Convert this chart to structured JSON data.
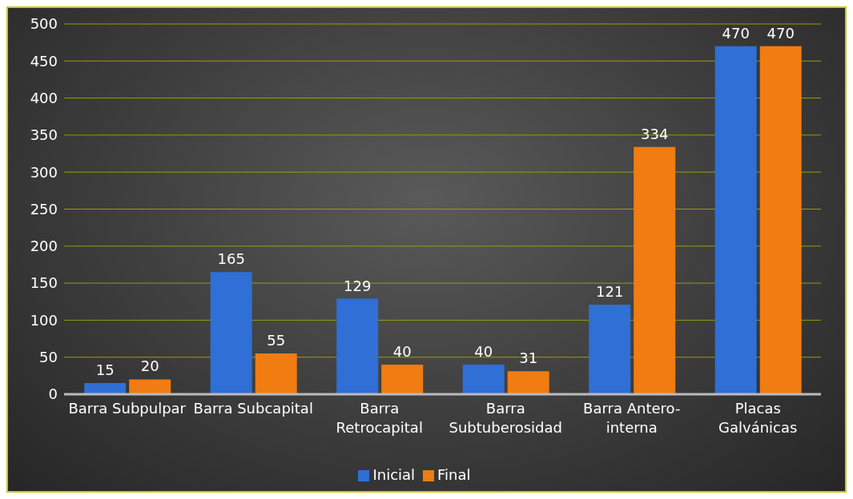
{
  "chart_data": {
    "type": "bar",
    "categories": [
      "Barra Subpulpar",
      "Barra Subcapital",
      "Barra Retrocapital",
      "Barra Subtuberosidad",
      "Barra Antero-interna",
      "Placas Galvánicas"
    ],
    "series": [
      {
        "name": "Inicial",
        "color": "#2f6fd6",
        "values": [
          15,
          165,
          129,
          40,
          121,
          470
        ]
      },
      {
        "name": "Final",
        "color": "#f07c12",
        "values": [
          20,
          55,
          40,
          31,
          334,
          470
        ]
      }
    ],
    "ylim": [
      0,
      500
    ],
    "yticks": [
      0,
      50,
      100,
      150,
      200,
      250,
      300,
      350,
      400,
      450,
      500
    ],
    "grid": "y",
    "legend": "bottom",
    "data_labels": true
  }
}
